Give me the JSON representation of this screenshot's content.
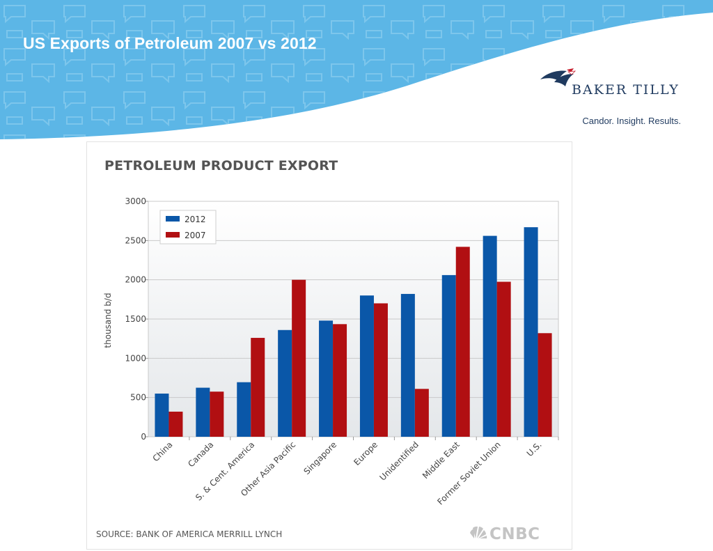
{
  "slide": {
    "title": "US Exports of Petroleum 2007 vs 2012",
    "banner_color": "#5cb6e6"
  },
  "logo": {
    "name": "BAKER TILLY",
    "tagline": "Candor. Insight. Results."
  },
  "chart_panel": {
    "heading": "PETROLEUM PRODUCT EXPORT",
    "source": "SOURCE: BANK OF AMERICA MERRILL LYNCH",
    "watermark": "CNBC"
  },
  "chart_data": {
    "type": "bar",
    "title": "PETROLEUM PRODUCT EXPORT",
    "xlabel": "",
    "ylabel": "thousand b/d",
    "ylim": [
      0,
      3000
    ],
    "yticks": [
      0,
      500,
      1000,
      1500,
      2000,
      2500,
      3000
    ],
    "grid": true,
    "legend_placement": "top-left",
    "categories": [
      "China",
      "Canada",
      "S. & Cent. America",
      "Other Asia Pacific",
      "Singapore",
      "Europe",
      "Unidentified",
      "Middle East",
      "Former Soviet Union",
      "U.S."
    ],
    "series": [
      {
        "name": "2012",
        "color": "#0a57a8",
        "values": [
          550,
          625,
          695,
          1360,
          1480,
          1800,
          1820,
          2060,
          2560,
          2670
        ]
      },
      {
        "name": "2007",
        "color": "#b10f12",
        "values": [
          320,
          575,
          1260,
          2000,
          1435,
          1700,
          610,
          2420,
          1975,
          1320
        ]
      }
    ]
  }
}
